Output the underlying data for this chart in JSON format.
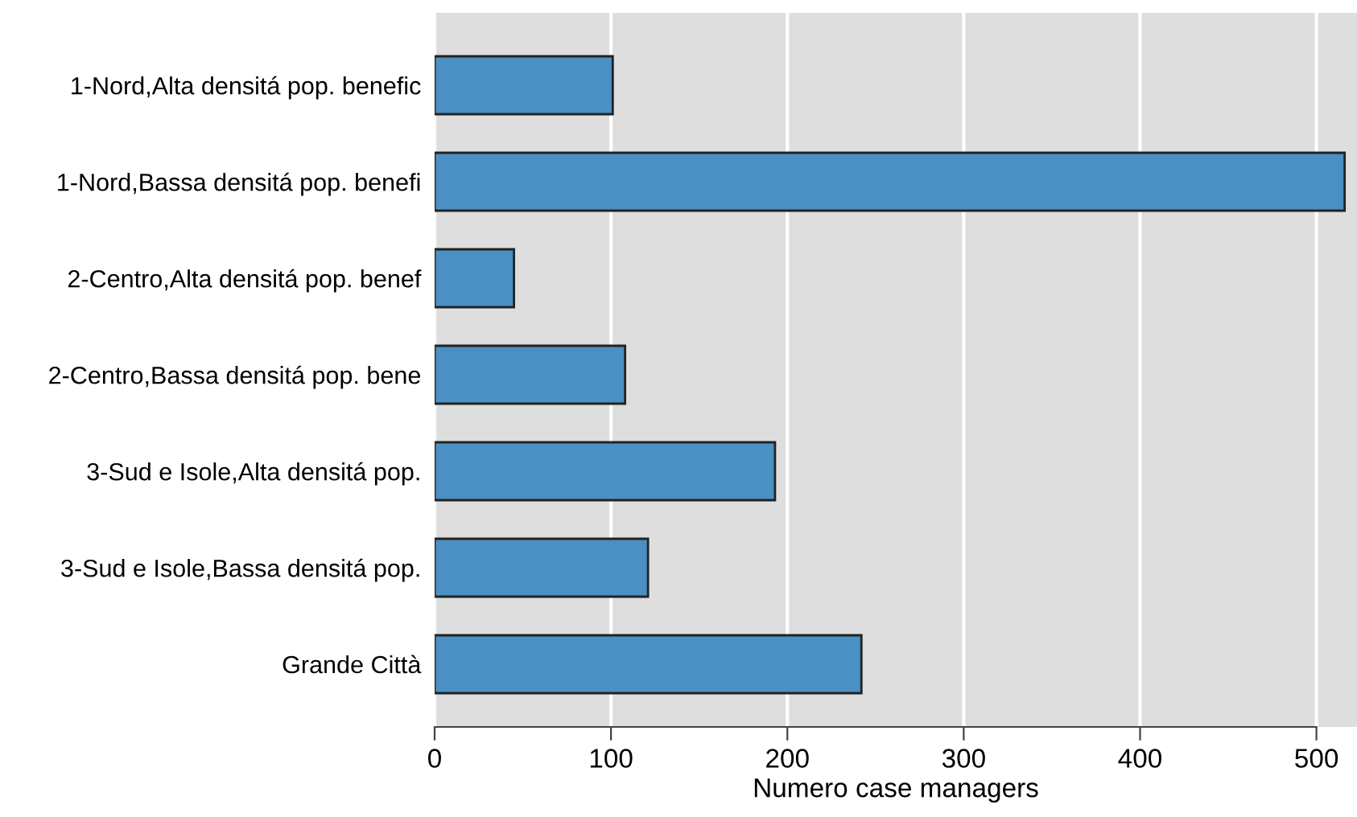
{
  "chart_data": {
    "type": "bar",
    "orientation": "horizontal",
    "xlabel": "Numero case managers",
    "categories": [
      "1-Nord,Alta densitá pop. benefic",
      "1-Nord,Bassa densitá pop. benefi",
      "2-Centro,Alta densitá pop. benef",
      "2-Centro,Bassa densitá pop. bene",
      "3-Sud e Isole,Alta densitá pop.",
      "3-Sud e Isole,Bassa densitá pop.",
      "Grande Città"
    ],
    "values": [
      101,
      516,
      45,
      108,
      193,
      121,
      242
    ],
    "color": "#4a90c2",
    "xlim": [
      0,
      523
    ],
    "xticks": [
      0,
      100,
      200,
      300,
      400,
      500
    ],
    "grid": "x",
    "legend": false
  }
}
